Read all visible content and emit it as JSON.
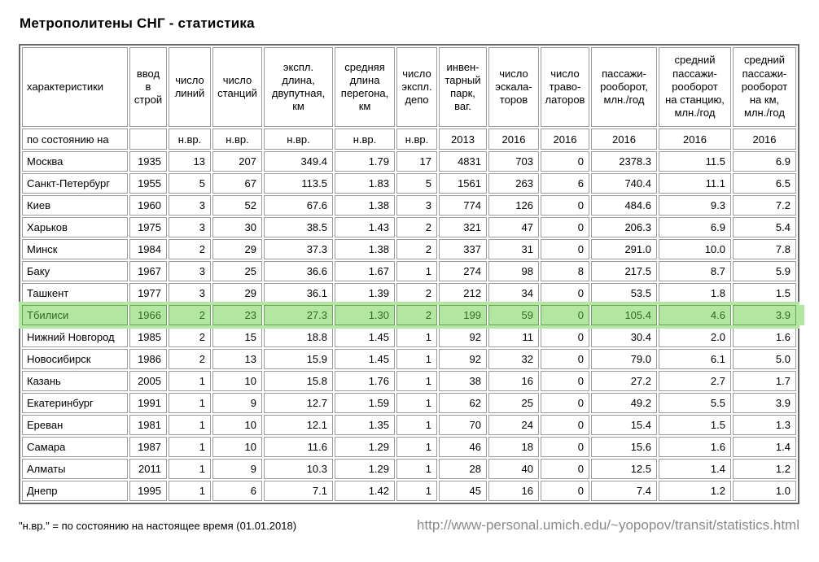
{
  "page": {
    "title": "Метрополитены СНГ - статистика",
    "footnote": "\"н.вр.\" = по состоянию на настоящее время (01.01.2018)",
    "source_url": "http://www-personal.umich.edu/~yopopov/transit/statistics.html"
  },
  "colors": {
    "highlight_background": "#b2e6a1",
    "highlight_text": "#2e6b20",
    "table_border": "#676767",
    "cell_border": "#9b9b9b",
    "url_text": "#8a8a8a"
  },
  "table": {
    "columns": [
      {
        "label": "характеристики",
        "sub": "по состоянию на"
      },
      {
        "label": "ввод\nв\nстрой",
        "sub": ""
      },
      {
        "label": "число\nлиний",
        "sub": "н.вр."
      },
      {
        "label": "число\nстанций",
        "sub": "н.вр."
      },
      {
        "label": "экспл.\nдлина,\nдвупутная,\nкм",
        "sub": "н.вр."
      },
      {
        "label": "средняя\nдлина\nперегона,\nкм",
        "sub": "н.вр."
      },
      {
        "label": "число\nэкспл.\nдепо",
        "sub": "н.вр."
      },
      {
        "label": "инвен-\nтарный\nпарк,\nваг.",
        "sub": "2013"
      },
      {
        "label": "число\nэскала-\nторов",
        "sub": "2016"
      },
      {
        "label": "число\nтраво-\nлаторов",
        "sub": "2016"
      },
      {
        "label": "пассажи-\nрооборот,\nмлн./год",
        "sub": "2016"
      },
      {
        "label": "средний\nпассажи-\nрооборот\nна станцию,\nмлн./год",
        "sub": "2016"
      },
      {
        "label": "средний\nпассажи-\nрооборот\nна км,\nмлн./год",
        "sub": "2016"
      }
    ],
    "rows": [
      {
        "highlighted": false,
        "cells": [
          "Москва",
          "1935",
          "13",
          "207",
          "349.4",
          "1.79",
          "17",
          "4831",
          "703",
          "0",
          "2378.3",
          "11.5",
          "6.9"
        ]
      },
      {
        "highlighted": false,
        "cells": [
          "Санкт-Петербург",
          "1955",
          "5",
          "67",
          "113.5",
          "1.83",
          "5",
          "1561",
          "263",
          "6",
          "740.4",
          "11.1",
          "6.5"
        ]
      },
      {
        "highlighted": false,
        "cells": [
          "Киев",
          "1960",
          "3",
          "52",
          "67.6",
          "1.38",
          "3",
          "774",
          "126",
          "0",
          "484.6",
          "9.3",
          "7.2"
        ]
      },
      {
        "highlighted": false,
        "cells": [
          "Харьков",
          "1975",
          "3",
          "30",
          "38.5",
          "1.43",
          "2",
          "321",
          "47",
          "0",
          "206.3",
          "6.9",
          "5.4"
        ]
      },
      {
        "highlighted": false,
        "cells": [
          "Минск",
          "1984",
          "2",
          "29",
          "37.3",
          "1.38",
          "2",
          "337",
          "31",
          "0",
          "291.0",
          "10.0",
          "7.8"
        ]
      },
      {
        "highlighted": false,
        "cells": [
          "Баку",
          "1967",
          "3",
          "25",
          "36.6",
          "1.67",
          "1",
          "274",
          "98",
          "8",
          "217.5",
          "8.7",
          "5.9"
        ]
      },
      {
        "highlighted": false,
        "cells": [
          "Ташкент",
          "1977",
          "3",
          "29",
          "36.1",
          "1.39",
          "2",
          "212",
          "34",
          "0",
          "53.5",
          "1.8",
          "1.5"
        ]
      },
      {
        "highlighted": true,
        "cells": [
          "Тбилиси",
          "1966",
          "2",
          "23",
          "27.3",
          "1.30",
          "2",
          "199",
          "59",
          "0",
          "105.4",
          "4.6",
          "3.9"
        ]
      },
      {
        "highlighted": false,
        "cells": [
          "Нижний Новгород",
          "1985",
          "2",
          "15",
          "18.8",
          "1.45",
          "1",
          "92",
          "11",
          "0",
          "30.4",
          "2.0",
          "1.6"
        ]
      },
      {
        "highlighted": false,
        "cells": [
          "Новосибирск",
          "1986",
          "2",
          "13",
          "15.9",
          "1.45",
          "1",
          "92",
          "32",
          "0",
          "79.0",
          "6.1",
          "5.0"
        ]
      },
      {
        "highlighted": false,
        "cells": [
          "Казань",
          "2005",
          "1",
          "10",
          "15.8",
          "1.76",
          "1",
          "38",
          "16",
          "0",
          "27.2",
          "2.7",
          "1.7"
        ]
      },
      {
        "highlighted": false,
        "cells": [
          "Екатеринбург",
          "1991",
          "1",
          "9",
          "12.7",
          "1.59",
          "1",
          "62",
          "25",
          "0",
          "49.2",
          "5.5",
          "3.9"
        ]
      },
      {
        "highlighted": false,
        "cells": [
          "Ереван",
          "1981",
          "1",
          "10",
          "12.1",
          "1.35",
          "1",
          "70",
          "24",
          "0",
          "15.4",
          "1.5",
          "1.3"
        ]
      },
      {
        "highlighted": false,
        "cells": [
          "Самара",
          "1987",
          "1",
          "10",
          "11.6",
          "1.29",
          "1",
          "46",
          "18",
          "0",
          "15.6",
          "1.6",
          "1.4"
        ]
      },
      {
        "highlighted": false,
        "cells": [
          "Алматы",
          "2011",
          "1",
          "9",
          "10.3",
          "1.29",
          "1",
          "28",
          "40",
          "0",
          "12.5",
          "1.4",
          "1.2"
        ]
      },
      {
        "highlighted": false,
        "cells": [
          "Днепр",
          "1995",
          "1",
          "6",
          "7.1",
          "1.42",
          "1",
          "45",
          "16",
          "0",
          "7.4",
          "1.2",
          "1.0"
        ]
      }
    ]
  }
}
